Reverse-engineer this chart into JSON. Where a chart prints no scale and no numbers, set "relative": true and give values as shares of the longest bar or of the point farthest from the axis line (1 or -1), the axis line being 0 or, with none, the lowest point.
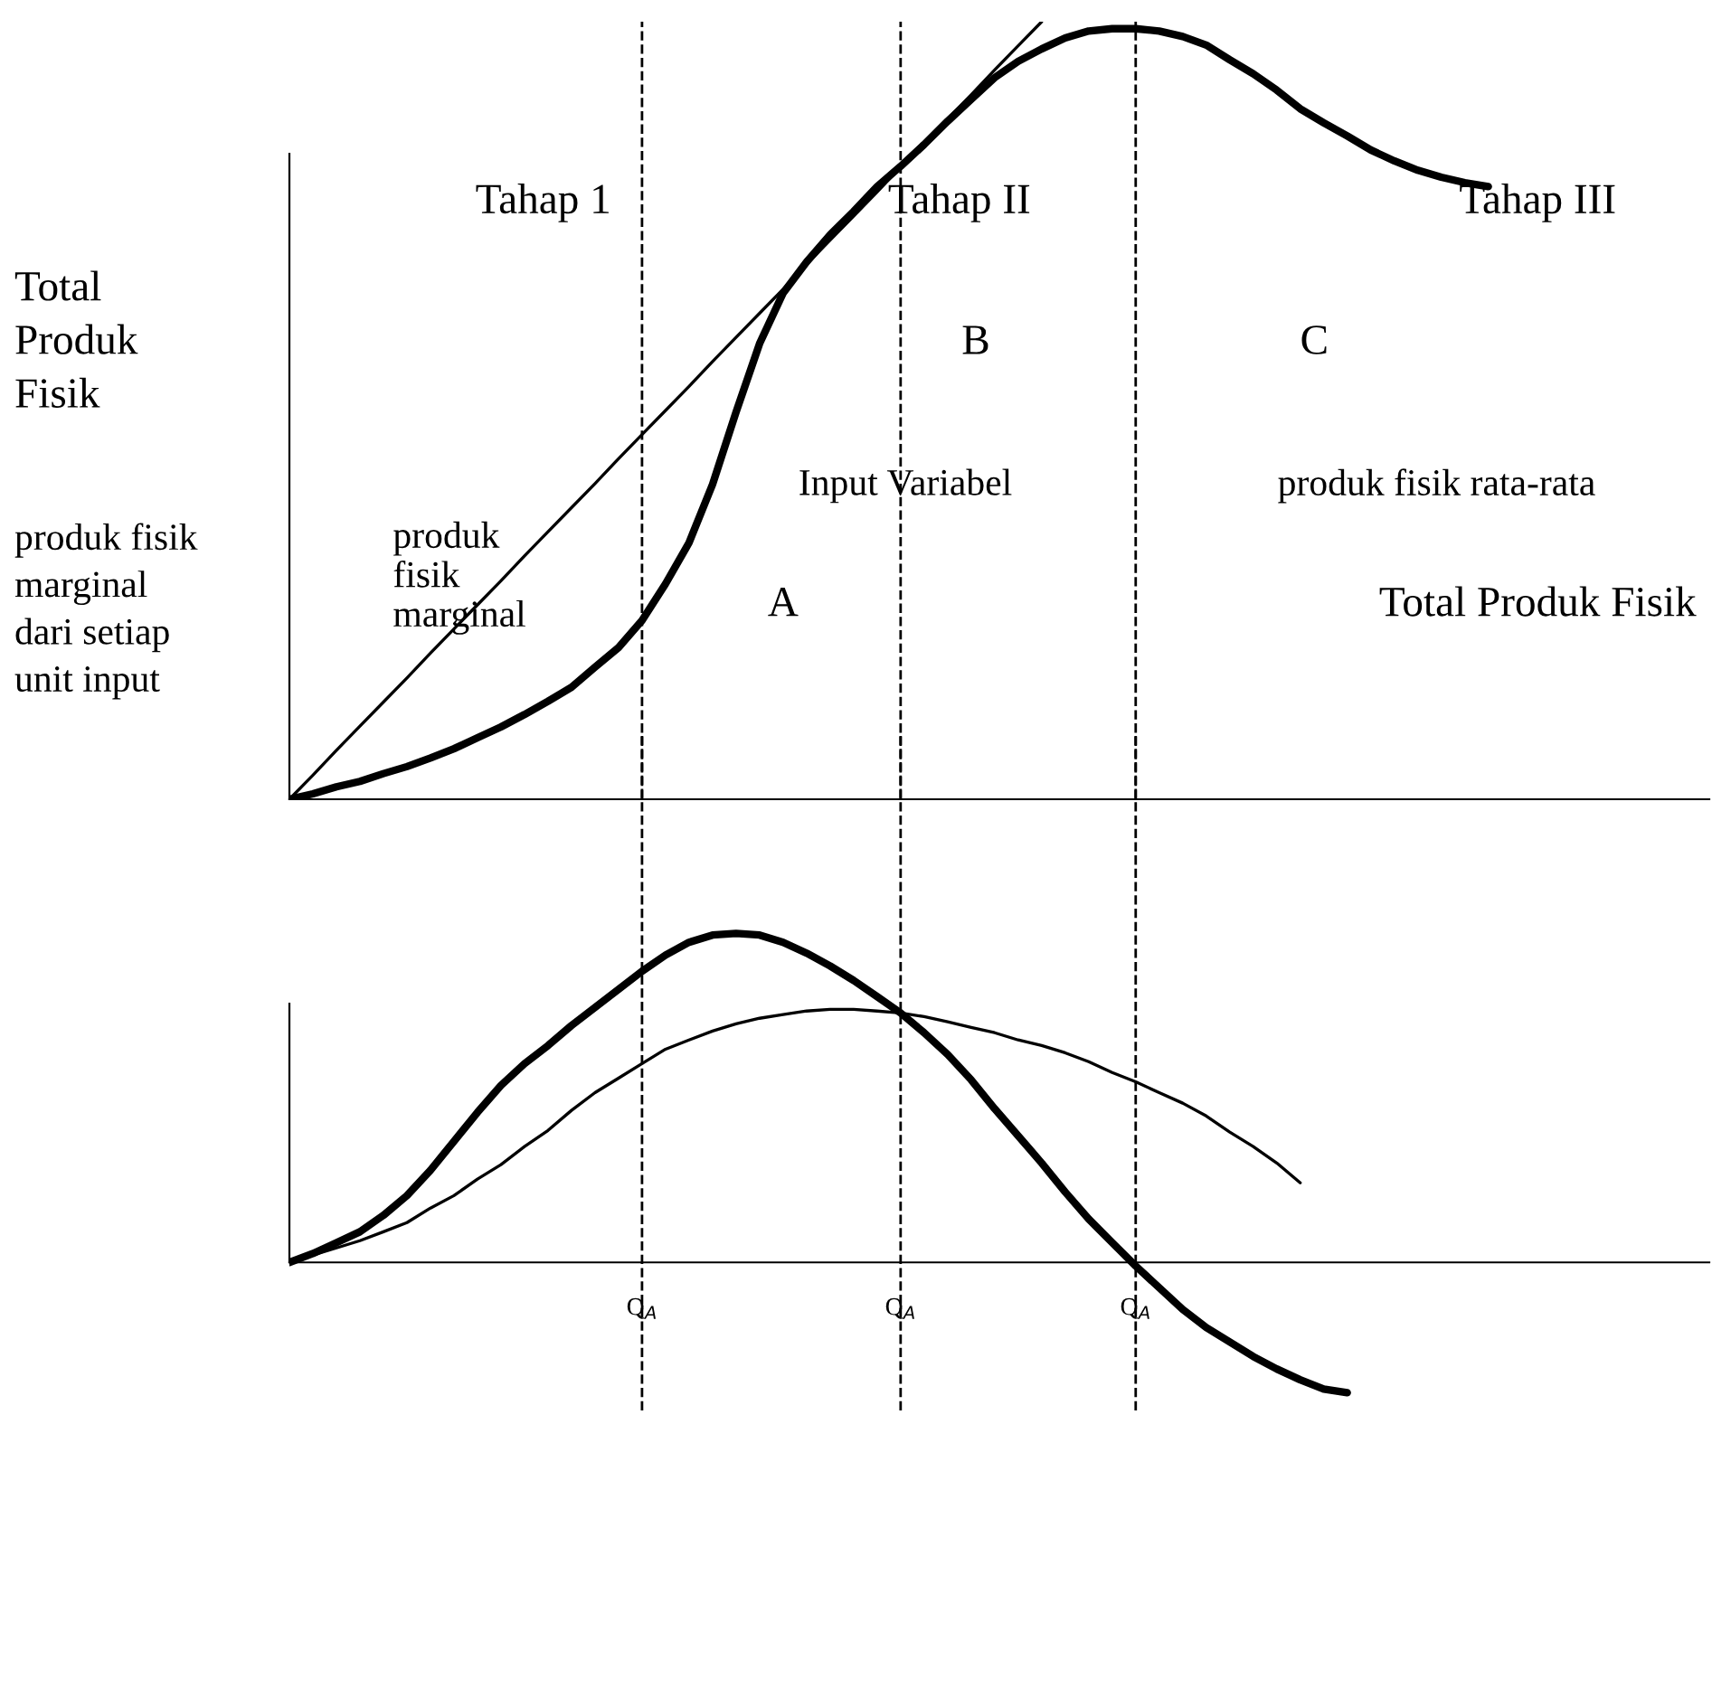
{
  "chart_data": [
    {
      "type": "line",
      "relative": true,
      "ylabel": "Total\nProduk\nFisik",
      "categories": [
        null,
        null,
        null,
        null,
        null,
        null,
        null,
        null,
        null,
        null,
        null,
        null,
        null,
        null,
        null,
        null,
        null,
        null,
        null,
        null,
        null,
        null,
        null,
        null,
        null,
        null,
        null,
        null,
        null,
        null,
        null,
        null,
        null,
        null,
        null,
        null,
        null,
        null,
        null,
        null,
        null,
        null,
        null,
        null,
        null,
        null,
        null,
        null,
        null,
        null,
        null,
        null,
        null,
        null,
        null,
        null,
        null,
        null,
        null,
        null,
        null
      ],
      "series": [
        {
          "color": "#000000",
          "values": [
            0,
            0.007,
            0.016,
            0.023,
            0.033,
            0.042,
            0.053,
            0.065,
            0.079,
            0.093,
            0.109,
            0.126,
            0.144,
            0.17,
            0.195,
            0.23,
            0.277,
            0.33,
            0.405,
            0.498,
            0.586,
            0.651,
            0.691,
            0.726,
            0.756,
            0.788,
            0.814,
            0.842,
            0.872,
            0.9,
            0.928,
            0.949,
            0.965,
            0.979,
            0.988,
            0.991,
            0.991,
            0.988,
            0.981,
            0.97,
            0.951,
            0.933,
            0.912,
            0.888,
            0.87,
            0.853,
            0.835,
            0.821,
            0.809,
            0.8,
            0.793,
            0.788,
            null,
            null,
            null,
            null,
            null,
            null,
            null,
            null,
            null
          ]
        },
        {
          "color": "#000000",
          "values": [
            0,
            0.031,
            0.063,
            0.094,
            0.125,
            0.156,
            0.188,
            0.219,
            0.25,
            0.281,
            0.313,
            0.344,
            0.375,
            0.406,
            0.438,
            0.469,
            0.5,
            0.531,
            0.563,
            0.594,
            0.625,
            0.656,
            0.688,
            0.719,
            0.75,
            0.781,
            0.813,
            0.844,
            0.875,
            0.906,
            0.938,
            0.969,
            1.0,
            null,
            null,
            null,
            null,
            null,
            null,
            null,
            null,
            null,
            null,
            null,
            null,
            null,
            null,
            null,
            null,
            null,
            null,
            null,
            null,
            null,
            null,
            null,
            null,
            null,
            null,
            null,
            null
          ]
        }
      ],
      "grid": "x",
      "annotations": [
        "Tahap 1",
        "Tahap II",
        "Tahap III",
        "B",
        "C",
        "A",
        "Total Produk Fisik"
      ]
    },
    {
      "type": "line",
      "relative": true,
      "ylabel": "produk fisik\nmarginal\ndari setiap\nunit input",
      "categories": [
        null,
        null,
        null,
        null,
        null,
        null,
        null,
        null,
        null,
        null,
        null,
        null,
        null,
        null,
        null,
        "Q$_{A}$",
        null,
        null,
        null,
        null,
        null,
        null,
        null,
        null,
        null,
        null,
        "Q$_{A}$",
        null,
        null,
        null,
        null,
        null,
        null,
        null,
        null,
        null,
        "Q$_{A}$",
        null,
        null,
        null,
        null,
        null,
        null,
        null,
        null,
        null,
        null,
        null,
        null,
        null,
        null,
        null,
        null,
        null,
        null,
        null,
        null,
        null,
        null,
        null,
        null
      ],
      "series": [
        {
          "color": "#000000",
          "values": [
            0,
            0.027,
            0.06,
            0.093,
            0.143,
            0.203,
            0.28,
            0.368,
            0.456,
            0.538,
            0.604,
            0.659,
            0.72,
            0.775,
            0.83,
            0.885,
            0.934,
            0.973,
            0.995,
            1.0,
            0.995,
            0.973,
            0.94,
            0.901,
            0.857,
            0.808,
            0.758,
            0.698,
            0.632,
            0.555,
            0.467,
            0.385,
            0.302,
            0.214,
            0.132,
            0.06,
            -0.011,
            -0.077,
            -0.143,
            -0.198,
            -0.242,
            -0.286,
            -0.324,
            -0.357,
            -0.385,
            -0.396,
            null,
            null,
            null,
            null,
            null,
            null,
            null,
            null,
            null,
            null,
            null,
            null,
            null,
            null,
            null
          ]
        },
        {
          "color": "#000000",
          "values": [
            0,
            0.022,
            0.044,
            0.066,
            0.093,
            0.121,
            0.165,
            0.203,
            0.253,
            0.297,
            0.352,
            0.401,
            0.462,
            0.516,
            0.56,
            0.604,
            0.648,
            0.676,
            0.703,
            0.725,
            0.742,
            0.753,
            0.764,
            0.769,
            0.769,
            0.764,
            0.758,
            0.747,
            0.731,
            0.714,
            0.698,
            0.676,
            0.659,
            0.637,
            0.61,
            0.577,
            0.549,
            0.516,
            0.484,
            0.445,
            0.396,
            0.352,
            0.302,
            0.242,
            null,
            null,
            null,
            null,
            null,
            null,
            null,
            null,
            null,
            null,
            null,
            null,
            null,
            null,
            null,
            null,
            null
          ]
        }
      ],
      "grid": "x",
      "annotations": [
        "produk\nfisik\nmarginal",
        "Input Variabel",
        "produk fisik rata-rata"
      ]
    }
  ]
}
